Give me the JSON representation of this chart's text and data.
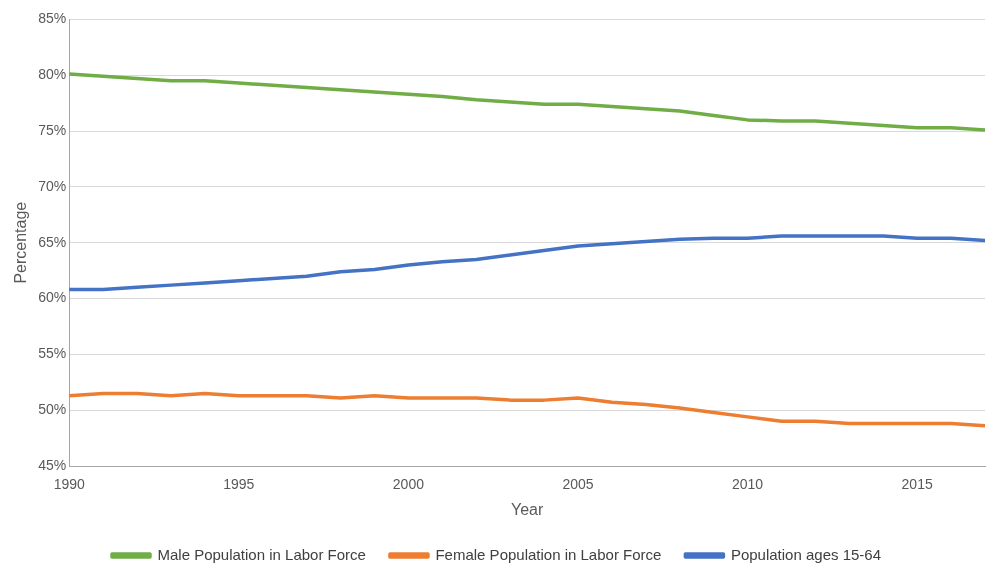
{
  "chart_data": {
    "type": "line",
    "xlabel": "Year",
    "ylabel": "Percentage",
    "x": [
      1990,
      1991,
      1992,
      1993,
      1994,
      1995,
      1996,
      1997,
      1998,
      1999,
      2000,
      2001,
      2002,
      2003,
      2004,
      2005,
      2006,
      2007,
      2008,
      2009,
      2010,
      2011,
      2012,
      2013,
      2014,
      2015,
      2016,
      2017
    ],
    "series": [
      {
        "name": "Male Population in Labor Force",
        "color": "#70ad47",
        "values": [
          80.1,
          79.9,
          79.7,
          79.5,
          79.5,
          79.3,
          79.1,
          78.9,
          78.7,
          78.5,
          78.3,
          78.1,
          77.8,
          77.6,
          77.4,
          77.4,
          77.2,
          77.0,
          76.8,
          76.4,
          76.0,
          75.9,
          75.9,
          75.7,
          75.5,
          75.3,
          75.3,
          75.1
        ]
      },
      {
        "name": "Female Population in Labor Force",
        "color": "#ed7d31",
        "values": [
          51.3,
          51.5,
          51.5,
          51.3,
          51.5,
          51.3,
          51.3,
          51.3,
          51.1,
          51.3,
          51.1,
          51.1,
          51.1,
          50.9,
          50.9,
          51.1,
          50.7,
          50.5,
          50.2,
          49.8,
          49.4,
          49.0,
          49.0,
          48.8,
          48.8,
          48.8,
          48.8,
          48.6
        ]
      },
      {
        "name": "Population ages 15-64",
        "color": "#4472c4",
        "values": [
          60.8,
          60.8,
          61.0,
          61.2,
          61.4,
          61.6,
          61.8,
          62.0,
          62.4,
          62.6,
          63.0,
          63.3,
          63.5,
          63.9,
          64.3,
          64.7,
          64.9,
          65.1,
          65.3,
          65.4,
          65.4,
          65.6,
          65.6,
          65.6,
          65.6,
          65.4,
          65.4,
          65.2
        ]
      }
    ],
    "xlim": [
      1990,
      2017
    ],
    "xticks": [
      1990,
      1995,
      2000,
      2005,
      2010,
      2015
    ],
    "ylim": [
      45,
      85
    ],
    "yticks": [
      {
        "value": 45,
        "label": "45%"
      },
      {
        "value": 50,
        "label": "50%"
      },
      {
        "value": 55,
        "label": "55%"
      },
      {
        "value": 60,
        "label": "60%"
      },
      {
        "value": 65,
        "label": "65%"
      },
      {
        "value": 70,
        "label": "70%"
      },
      {
        "value": 75,
        "label": "75%"
      },
      {
        "value": 80,
        "label": "80%"
      },
      {
        "value": 85,
        "label": "85%"
      }
    ],
    "grid": "y",
    "legend": "bottom",
    "marker": "none",
    "line_style": "solid"
  }
}
